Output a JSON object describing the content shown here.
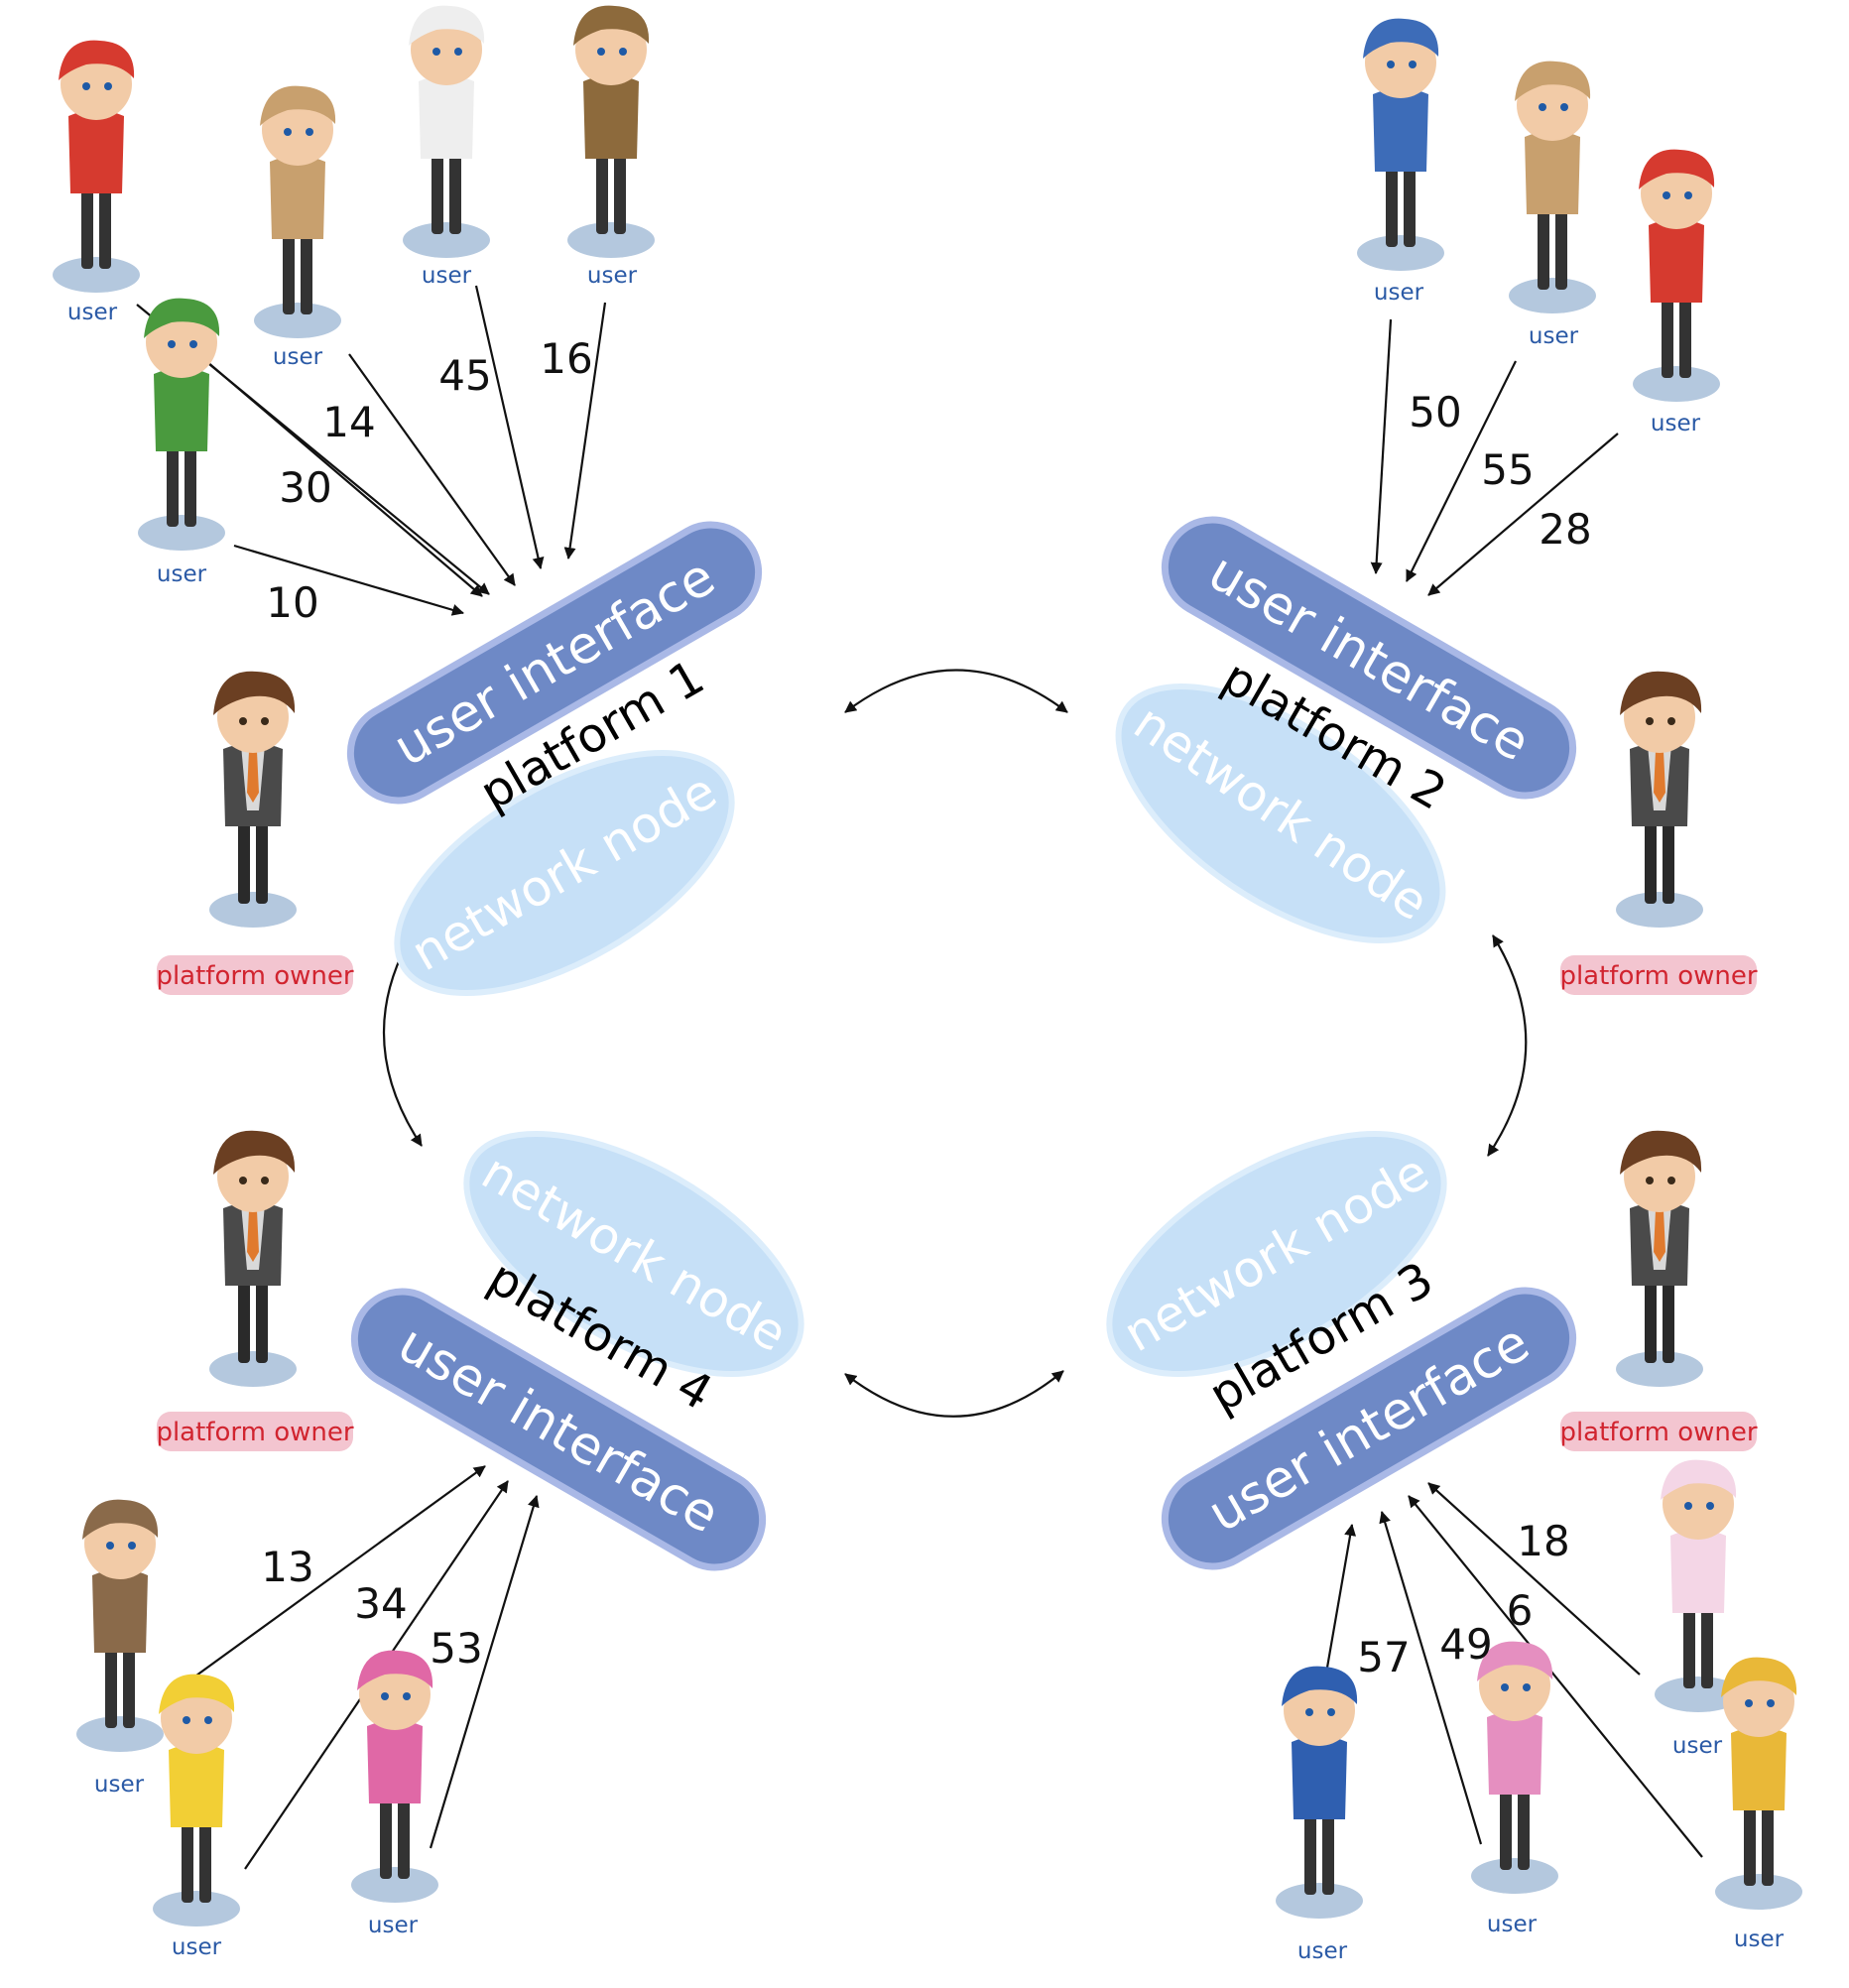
{
  "colors": {
    "user_interface_fill": "#6e89c6",
    "user_interface_edge": "#a9b8e6",
    "network_node_fill": "#c6e0f7",
    "network_node_edge": "#dcedfb",
    "owner_badge": "#f3c5d0",
    "owner_text": "#d1242f",
    "user_label_text": "#2b5aa6",
    "shadow": "#b4c8de"
  },
  "platforms": [
    {
      "name": "platform 1",
      "interface_label": "user interface",
      "node_label": "network node",
      "owner_label": "platform owner"
    },
    {
      "name": "platform 2",
      "interface_label": "user interface",
      "node_label": "network node",
      "owner_label": "platform owner"
    },
    {
      "name": "platform 3",
      "interface_label": "user interface",
      "node_label": "network node",
      "owner_label": "platform owner"
    },
    {
      "name": "platform 4",
      "interface_label": "user interface",
      "node_label": "network node",
      "owner_label": "platform owner"
    }
  ],
  "users": {
    "label": "user",
    "platform1_counts": [
      "30",
      "14",
      "45",
      "16",
      "10"
    ],
    "platform2_counts": [
      "50",
      "55",
      "28"
    ],
    "platform3_counts": [
      "57",
      "49",
      "6",
      "18"
    ],
    "platform4_counts": [
      "13",
      "34",
      "53"
    ]
  }
}
